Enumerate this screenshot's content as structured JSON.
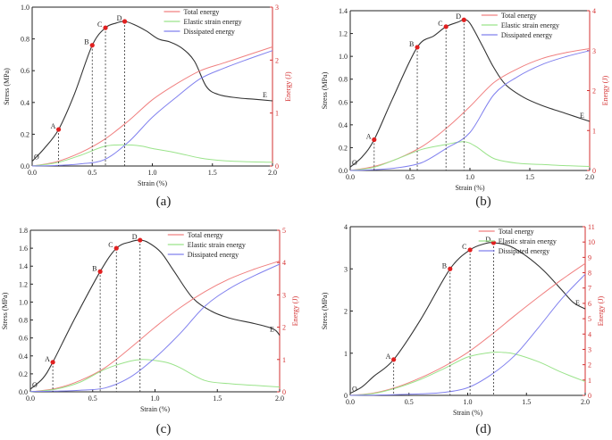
{
  "figure": {
    "colors": {
      "stress": "#333333",
      "total": "#f08080",
      "elastic": "#9ae38a",
      "dissipated": "#8080ee",
      "right_axis": "#d33030",
      "marker": "#e02020"
    },
    "axis_labels": {
      "xlabel": "Strain (%)",
      "ylabel": "Stress (MPa)",
      "y2label": "Energy (J)"
    },
    "legend": [
      "Total energy",
      "Elastic strain energy",
      "Dissipated energy"
    ]
  },
  "chart_data": [
    {
      "type": "line",
      "caption": "(a)",
      "title": "",
      "xlabel": "Strain (%)",
      "ylabel": "Stress (MPa)",
      "y2label": "Energy (J)",
      "xlim": [
        0,
        2.0
      ],
      "ylim": [
        0,
        1.0
      ],
      "y2lim": [
        0,
        3
      ],
      "xticks": [
        "0.0",
        "0.5",
        "1.0",
        "1.5",
        "2.0"
      ],
      "yticks": [
        "0.0",
        "0.2",
        "0.4",
        "0.6",
        "0.8",
        "1.0"
      ],
      "y2ticks": [
        "0",
        "1",
        "2",
        "3"
      ],
      "series": [
        {
          "name": "Stress",
          "axis": "left",
          "x": [
            0,
            0.1,
            0.22,
            0.35,
            0.5,
            0.61,
            0.7,
            0.77,
            0.85,
            0.95,
            1.05,
            1.15,
            1.25,
            1.35,
            1.45,
            1.55,
            1.7,
            1.85,
            2.0
          ],
          "y": [
            0.03,
            0.11,
            0.23,
            0.45,
            0.76,
            0.87,
            0.9,
            0.91,
            0.89,
            0.85,
            0.8,
            0.78,
            0.74,
            0.66,
            0.5,
            0.45,
            0.43,
            0.42,
            0.41
          ]
        },
        {
          "name": "Total energy",
          "axis": "right",
          "x": [
            0,
            0.2,
            0.4,
            0.6,
            0.8,
            1.0,
            1.2,
            1.4,
            1.6,
            1.8,
            2.0
          ],
          "y": [
            0,
            0.08,
            0.25,
            0.5,
            0.85,
            1.25,
            1.55,
            1.8,
            1.95,
            2.1,
            2.25
          ]
        },
        {
          "name": "Elastic strain energy",
          "axis": "right",
          "x": [
            0,
            0.2,
            0.4,
            0.6,
            0.75,
            0.9,
            1.0,
            1.2,
            1.4,
            1.6,
            1.8,
            2.0
          ],
          "y": [
            0,
            0.06,
            0.2,
            0.37,
            0.4,
            0.38,
            0.33,
            0.25,
            0.15,
            0.1,
            0.08,
            0.07
          ]
        },
        {
          "name": "Dissipated energy",
          "axis": "right",
          "x": [
            0,
            0.2,
            0.4,
            0.6,
            0.8,
            1.0,
            1.2,
            1.4,
            1.6,
            1.8,
            2.0
          ],
          "y": [
            0,
            0.01,
            0.04,
            0.12,
            0.45,
            0.92,
            1.3,
            1.65,
            1.85,
            2.02,
            2.18
          ]
        }
      ],
      "points": [
        {
          "label": "O",
          "x": 0.0,
          "y": 0.03
        },
        {
          "label": "A",
          "x": 0.22,
          "y": 0.23
        },
        {
          "label": "B",
          "x": 0.5,
          "y": 0.76
        },
        {
          "label": "C",
          "x": 0.61,
          "y": 0.87
        },
        {
          "label": "D",
          "x": 0.77,
          "y": 0.91
        },
        {
          "label": "E",
          "x": 2.0,
          "y": 0.41
        }
      ]
    },
    {
      "type": "line",
      "caption": "(b)",
      "title": "",
      "xlabel": "Strain (%)",
      "ylabel": "Stress (MPa)",
      "y2label": "Energy (J)",
      "xlim": [
        0,
        2.0
      ],
      "ylim": [
        0,
        1.4
      ],
      "y2lim": [
        0,
        4
      ],
      "xticks": [
        "0.0",
        "0.5",
        "1.0",
        "1.5",
        "2.0"
      ],
      "yticks": [
        "0.0",
        "0.2",
        "0.4",
        "0.6",
        "0.8",
        "1.0",
        "1.2",
        "1.4"
      ],
      "y2ticks": [
        "0",
        "1",
        "2",
        "3",
        "4"
      ],
      "series": [
        {
          "name": "Stress",
          "axis": "left",
          "x": [
            0,
            0.1,
            0.2,
            0.35,
            0.56,
            0.7,
            0.8,
            0.9,
            0.95,
            1.0,
            1.1,
            1.2,
            1.3,
            1.45,
            1.6,
            1.8,
            2.0
          ],
          "y": [
            0.03,
            0.12,
            0.27,
            0.62,
            1.08,
            1.18,
            1.26,
            1.3,
            1.32,
            1.29,
            1.1,
            0.9,
            0.75,
            0.64,
            0.57,
            0.5,
            0.43
          ]
        },
        {
          "name": "Total energy",
          "axis": "right",
          "x": [
            0,
            0.2,
            0.4,
            0.6,
            0.8,
            1.0,
            1.2,
            1.4,
            1.6,
            1.8,
            2.0
          ],
          "y": [
            0,
            0.1,
            0.3,
            0.6,
            1.05,
            1.6,
            2.2,
            2.55,
            2.8,
            2.95,
            3.05
          ]
        },
        {
          "name": "Elastic strain energy",
          "axis": "right",
          "x": [
            0,
            0.2,
            0.4,
            0.6,
            0.8,
            0.95,
            1.05,
            1.2,
            1.4,
            1.6,
            1.8,
            2.0
          ],
          "y": [
            0,
            0.08,
            0.3,
            0.53,
            0.65,
            0.72,
            0.6,
            0.3,
            0.18,
            0.15,
            0.12,
            0.1
          ]
        },
        {
          "name": "Dissipated energy",
          "axis": "right",
          "x": [
            0,
            0.2,
            0.4,
            0.6,
            0.8,
            1.0,
            1.2,
            1.4,
            1.6,
            1.8,
            2.0
          ],
          "y": [
            0,
            0.02,
            0.07,
            0.2,
            0.55,
            0.95,
            1.9,
            2.35,
            2.65,
            2.85,
            3.0
          ]
        }
      ],
      "points": [
        {
          "label": "O",
          "x": 0.0,
          "y": 0.03
        },
        {
          "label": "A",
          "x": 0.2,
          "y": 0.27
        },
        {
          "label": "B",
          "x": 0.56,
          "y": 1.08
        },
        {
          "label": "C",
          "x": 0.8,
          "y": 1.26
        },
        {
          "label": "D",
          "x": 0.95,
          "y": 1.32
        },
        {
          "label": "E",
          "x": 2.0,
          "y": 0.43
        }
      ]
    },
    {
      "type": "line",
      "caption": "(c)",
      "title": "",
      "xlabel": "Strain (%)",
      "ylabel": "Stress (MPa)",
      "y2label": "Energy (J)",
      "xlim": [
        0,
        2.0
      ],
      "ylim": [
        0,
        1.8
      ],
      "y2lim": [
        0,
        5
      ],
      "xticks": [
        "0.0",
        "0.5",
        "1.0",
        "1.5",
        "2.0"
      ],
      "yticks": [
        "0.0",
        "0.2",
        "0.4",
        "0.6",
        "0.8",
        "1.0",
        "1.2",
        "1.4",
        "1.6",
        "1.8"
      ],
      "y2ticks": [
        "0",
        "1",
        "2",
        "3",
        "4",
        "5"
      ],
      "series": [
        {
          "name": "Stress",
          "axis": "left",
          "x": [
            0,
            0.1,
            0.18,
            0.35,
            0.56,
            0.69,
            0.8,
            0.88,
            0.95,
            1.05,
            1.15,
            1.3,
            1.45,
            1.6,
            1.8,
            1.95,
            2.0
          ],
          "y": [
            0.03,
            0.15,
            0.33,
            0.8,
            1.34,
            1.6,
            1.67,
            1.69,
            1.66,
            1.55,
            1.35,
            1.05,
            0.9,
            0.82,
            0.76,
            0.7,
            0.63
          ]
        },
        {
          "name": "Total energy",
          "axis": "right",
          "x": [
            0,
            0.2,
            0.4,
            0.6,
            0.8,
            1.0,
            1.2,
            1.4,
            1.6,
            1.8,
            2.0
          ],
          "y": [
            0,
            0.1,
            0.35,
            0.75,
            1.35,
            2.0,
            2.6,
            3.1,
            3.5,
            3.8,
            4.05
          ]
        },
        {
          "name": "Elastic strain energy",
          "axis": "right",
          "x": [
            0,
            0.2,
            0.4,
            0.6,
            0.8,
            0.9,
            1.0,
            1.1,
            1.2,
            1.4,
            1.6,
            1.8,
            2.0
          ],
          "y": [
            0,
            0.08,
            0.3,
            0.7,
            0.95,
            1.0,
            0.97,
            0.9,
            0.75,
            0.35,
            0.25,
            0.2,
            0.15
          ]
        },
        {
          "name": "Dissipated energy",
          "axis": "right",
          "x": [
            0,
            0.2,
            0.4,
            0.6,
            0.8,
            1.0,
            1.2,
            1.4,
            1.6,
            1.8,
            2.0
          ],
          "y": [
            0.01,
            0.02,
            0.05,
            0.12,
            0.45,
            1.05,
            1.8,
            2.65,
            3.2,
            3.6,
            3.95
          ]
        }
      ],
      "points": [
        {
          "label": "O",
          "x": 0.0,
          "y": 0.03
        },
        {
          "label": "A",
          "x": 0.18,
          "y": 0.33
        },
        {
          "label": "B",
          "x": 0.56,
          "y": 1.34
        },
        {
          "label": "C",
          "x": 0.69,
          "y": 1.6
        },
        {
          "label": "D",
          "x": 0.88,
          "y": 1.69
        },
        {
          "label": "E",
          "x": 2.0,
          "y": 0.63
        }
      ]
    },
    {
      "type": "line",
      "caption": "(d)",
      "title": "",
      "xlabel": "Strain (%)",
      "ylabel": "Stress (MPa)",
      "y2label": "Energy (J)",
      "xlim": [
        0,
        2.0
      ],
      "ylim": [
        0,
        4
      ],
      "y2lim": [
        0,
        11
      ],
      "xticks": [
        "0.0",
        "0.5",
        "1.0",
        "1.5",
        "2.0"
      ],
      "yticks": [
        "0",
        "1",
        "2",
        "3",
        "4"
      ],
      "y2ticks": [
        "0",
        "1",
        "2",
        "3",
        "4",
        "5",
        "6",
        "7",
        "8",
        "9",
        "10",
        "11"
      ],
      "series": [
        {
          "name": "Stress",
          "axis": "left",
          "x": [
            0,
            0.1,
            0.2,
            0.37,
            0.6,
            0.85,
            1.02,
            1.15,
            1.22,
            1.35,
            1.5,
            1.65,
            1.8,
            1.9,
            2.0
          ],
          "y": [
            0.05,
            0.2,
            0.45,
            0.85,
            1.8,
            3.0,
            3.45,
            3.6,
            3.62,
            3.55,
            3.3,
            2.95,
            2.5,
            2.2,
            2.05
          ]
        },
        {
          "name": "Total energy",
          "axis": "right",
          "x": [
            0,
            0.2,
            0.4,
            0.6,
            0.8,
            1.0,
            1.2,
            1.4,
            1.6,
            1.8,
            2.0
          ],
          "y": [
            0,
            0.15,
            0.55,
            1.15,
            1.9,
            2.8,
            3.95,
            5.2,
            6.4,
            7.55,
            8.6
          ]
        },
        {
          "name": "Elastic strain energy",
          "axis": "right",
          "x": [
            0,
            0.2,
            0.4,
            0.6,
            0.8,
            1.0,
            1.2,
            1.3,
            1.4,
            1.6,
            1.8,
            2.0
          ],
          "y": [
            0,
            0.12,
            0.5,
            1.05,
            1.75,
            2.5,
            2.8,
            2.8,
            2.7,
            2.2,
            1.5,
            0.9
          ]
        },
        {
          "name": "Dissipated energy",
          "axis": "right",
          "x": [
            0,
            0.2,
            0.4,
            0.6,
            0.8,
            1.0,
            1.2,
            1.4,
            1.6,
            1.8,
            2.0
          ],
          "y": [
            0,
            0.02,
            0.05,
            0.1,
            0.2,
            0.5,
            1.35,
            2.6,
            4.4,
            6.3,
            7.9
          ]
        }
      ],
      "points": [
        {
          "label": "O",
          "x": 0.0,
          "y": 0.05
        },
        {
          "label": "A",
          "x": 0.37,
          "y": 0.85
        },
        {
          "label": "B",
          "x": 0.85,
          "y": 3.0
        },
        {
          "label": "C",
          "x": 1.02,
          "y": 3.45
        },
        {
          "label": "D",
          "x": 1.22,
          "y": 3.62
        },
        {
          "label": "E",
          "x": 2.0,
          "y": 2.05
        }
      ]
    }
  ]
}
